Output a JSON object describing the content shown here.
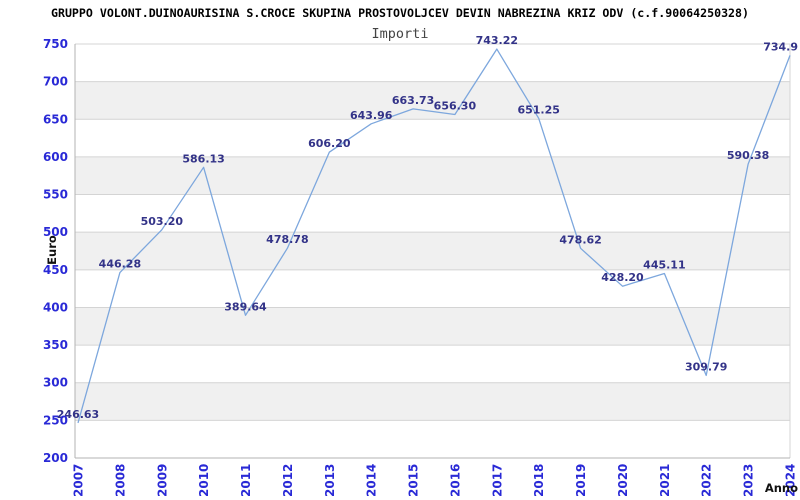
{
  "header": {
    "title": "GRUPPO VOLONT.DUINOAURISINA S.CROCE SKUPINA PROSTOVOLJCEV DEVIN NABREZINA KRIZ ODV (c.f.90064250328)",
    "subtitle": "Importi"
  },
  "chart_data": {
    "type": "line",
    "title": "GRUPPO VOLONT.DUINOAURISINA S.CROCE SKUPINA PROSTOVOLJCEV DEVIN NABREZINA KRIZ ODV (c.f.90064250328)",
    "subtitle": "Importi",
    "xlabel": "Anno",
    "ylabel": "Euro",
    "categories": [
      "2007",
      "2008",
      "2009",
      "2010",
      "2011",
      "2012",
      "2013",
      "2014",
      "2015",
      "2016",
      "2017",
      "2018",
      "2019",
      "2020",
      "2021",
      "2022",
      "2023",
      "2024"
    ],
    "values": [
      246.63,
      446.28,
      503.2,
      586.13,
      389.64,
      478.78,
      606.2,
      643.96,
      663.73,
      656.3,
      743.22,
      651.25,
      478.62,
      428.2,
      445.11,
      309.79,
      590.38,
      734.9
    ],
    "point_labels": [
      "246.63",
      "446.28",
      "503.20",
      "586.13",
      "389.64",
      "478.78",
      "606.20",
      "643.96",
      "663.73",
      "656.30",
      "743.22",
      "651.25",
      "478.62",
      "428.20",
      "445.11",
      "309.79",
      "590.38",
      "734.9"
    ],
    "ylim": [
      200,
      750
    ],
    "ytick_interval": 50,
    "yticks": [
      200,
      250,
      300,
      350,
      400,
      450,
      500,
      550,
      600,
      650,
      700,
      750
    ],
    "grid": "horizontal-gridlines-with-alternating-bands",
    "legend": "none",
    "markers": "none",
    "colors": {
      "line": "#7da7dd",
      "point_label": "#333388",
      "tick_label": "#2929d6",
      "band_gray": "#f0f0f0",
      "gridline": "#d4d4d4",
      "axis_border": "#b3b3b3",
      "title": "#000000",
      "subtitle": "#444444",
      "axis_title": "#111111"
    }
  }
}
